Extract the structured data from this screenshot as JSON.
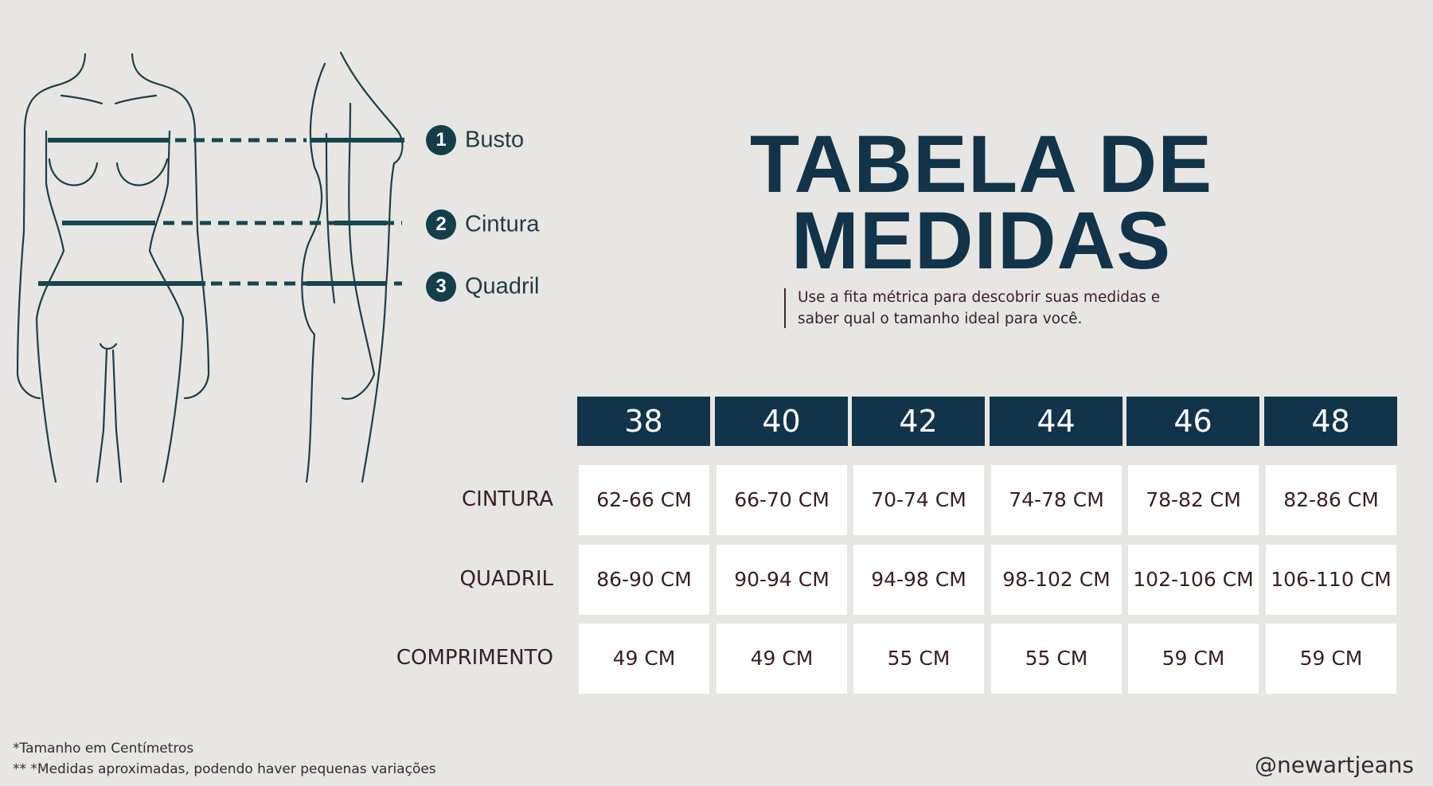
{
  "legend": [
    {
      "number": "1",
      "label": "Busto"
    },
    {
      "number": "2",
      "label": "Cintura"
    },
    {
      "number": "3",
      "label": "Quadril"
    }
  ],
  "title": {
    "line1": "TABELA DE",
    "line2": "MEDIDAS"
  },
  "subtitle": {
    "line1": "Use a fita métrica para descobrir suas medidas e",
    "line2": "saber qual o tamanho ideal para você."
  },
  "table": {
    "sizes": [
      "38",
      "40",
      "42",
      "44",
      "46",
      "48"
    ],
    "rows": [
      {
        "label": "CINTURA",
        "values": [
          "62-66 CM",
          "66-70 CM",
          "70-74 CM",
          "74-78 CM",
          "78-82 CM",
          "82-86 CM"
        ]
      },
      {
        "label": "QUADRIL",
        "values": [
          "86-90 CM",
          "90-94 CM",
          "94-98 CM",
          "98-102 CM",
          "102-106 CM",
          "106-110 CM"
        ]
      },
      {
        "label": "COMPRIMENTO",
        "values": [
          "49 CM",
          "49 CM",
          "55 CM",
          "55 CM",
          "59 CM",
          "59 CM"
        ]
      }
    ]
  },
  "footnotes": [
    "*Tamanho em Centímetros",
    "** *Medidas aproximadas, podendo haver pequenas variações"
  ],
  "handle": "@newartjeans",
  "colors": {
    "background": "#e8e6e3",
    "header": "#12344a",
    "line": "#1c4a56",
    "text": "#3a1f1f"
  }
}
